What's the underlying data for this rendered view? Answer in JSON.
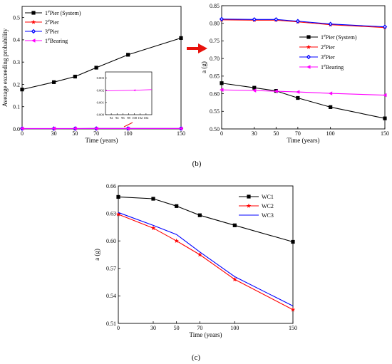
{
  "chart_data": [
    {
      "id": "a",
      "type": "line",
      "xlabel": "Time (years)",
      "ylabel": "Average exceeding probability",
      "xlim": [
        0,
        150
      ],
      "ylim": [
        0,
        0.55
      ],
      "x": [
        0,
        30,
        50,
        70,
        100,
        150
      ],
      "xticks": [
        "0",
        "30",
        "50",
        "70",
        "100",
        "150"
      ],
      "yticks": [
        "0.0",
        "0.1",
        "0.2",
        "0.3",
        "0.4",
        "0.5"
      ],
      "ytick_values": [
        0,
        0.1,
        0.2,
        0.3,
        0.4,
        0.5
      ],
      "legend_position": "top-left",
      "series": [
        {
          "name": "1#Pier (System)",
          "color": "#000000",
          "marker": "square",
          "values": [
            0.177,
            0.21,
            0.235,
            0.275,
            0.333,
            0.408
          ]
        },
        {
          "name": "2#Pier",
          "color": "#ff0000",
          "marker": "star",
          "values": [
            0.0015,
            0.0015,
            0.0016,
            0.0017,
            0.0018,
            0.0019
          ]
        },
        {
          "name": "3#Pier",
          "color": "#0000ff",
          "marker": "diamond",
          "values": [
            0.0015,
            0.0015,
            0.0016,
            0.0017,
            0.0018,
            0.0019
          ]
        },
        {
          "name": "1#Bearing",
          "color": "#ff00ff",
          "marker": "triangle-left",
          "values": [
            0.002,
            0.002,
            0.002,
            0.002,
            0.002,
            0.002
          ]
        }
      ],
      "inset": {
        "xlim": [
          90,
          106
        ],
        "ylim": [
          0,
          0.0035
        ],
        "xticks": [
          "92",
          "94",
          "96",
          "98",
          "100",
          "102",
          "104"
        ],
        "xtick_values": [
          92,
          94,
          96,
          98,
          100,
          102,
          104
        ],
        "yticks": [
          "0.000",
          "0.001",
          "0.002",
          "0.003"
        ],
        "ytick_values": [
          0,
          0.001,
          0.002,
          0.003
        ],
        "x": [
          90,
          100,
          106
        ],
        "values": [
          0.00195,
          0.002,
          0.00205
        ],
        "color": "#ff00ff"
      }
    },
    {
      "id": "b",
      "type": "line",
      "xlabel": "Time (years)",
      "ylabel": "a (g)",
      "xlim": [
        0,
        150
      ],
      "ylim": [
        0.5,
        0.85
      ],
      "x": [
        0,
        30,
        50,
        70,
        100,
        150
      ],
      "xticks": [
        "0",
        "30",
        "50",
        "70",
        "100",
        "150"
      ],
      "yticks": [
        "0.50",
        "0.55",
        "0.60",
        "0.65",
        "0.70",
        "0.75",
        "0.80",
        "0.85"
      ],
      "ytick_values": [
        0.5,
        0.55,
        0.6,
        0.65,
        0.7,
        0.75,
        0.8,
        0.85
      ],
      "legend_position": "center-right",
      "series": [
        {
          "name": "1#Pier (System)",
          "color": "#000000",
          "marker": "square",
          "values": [
            0.63,
            0.617,
            0.608,
            0.588,
            0.562,
            0.53
          ]
        },
        {
          "name": "2#Pier",
          "color": "#ff0000",
          "marker": "star",
          "values": [
            0.81,
            0.809,
            0.809,
            0.804,
            0.796,
            0.788
          ]
        },
        {
          "name": "3#Pier",
          "color": "#0000ff",
          "marker": "diamond",
          "values": [
            0.812,
            0.811,
            0.811,
            0.806,
            0.798,
            0.79
          ]
        },
        {
          "name": "1#Bearing",
          "color": "#ff00ff",
          "marker": "triangle-left",
          "values": [
            0.611,
            0.609,
            0.607,
            0.605,
            0.601,
            0.596
          ]
        }
      ]
    },
    {
      "id": "c",
      "type": "line",
      "xlabel": "Time (years)",
      "ylabel": "a (g)",
      "xlim": [
        0,
        150
      ],
      "ylim": [
        0.51,
        0.66
      ],
      "x": [
        0,
        30,
        50,
        70,
        100,
        150
      ],
      "xticks": [
        "0",
        "30",
        "50",
        "70",
        "100",
        "150"
      ],
      "yticks": [
        "0.51",
        "0.54",
        "0.57",
        "0.60",
        "0.63",
        "0.66"
      ],
      "ytick_values": [
        0.51,
        0.54,
        0.57,
        0.6,
        0.63,
        0.66
      ],
      "legend_position": "top-right",
      "series": [
        {
          "name": "WC1",
          "color": "#000000",
          "marker": "square",
          "values": [
            0.648,
            0.646,
            0.638,
            0.628,
            0.617,
            0.599
          ]
        },
        {
          "name": "WC2",
          "color": "#ff0000",
          "marker": "star",
          "values": [
            0.629,
            0.614,
            0.6,
            0.585,
            0.558,
            0.525
          ]
        },
        {
          "name": "WC3",
          "color": "#0000ff",
          "marker": "none",
          "values": [
            0.631,
            0.617,
            0.607,
            0.588,
            0.561,
            0.529
          ]
        }
      ]
    }
  ],
  "captions": {
    "b": "(b)",
    "c": "(c)"
  },
  "arrow_color": "#e8120c"
}
